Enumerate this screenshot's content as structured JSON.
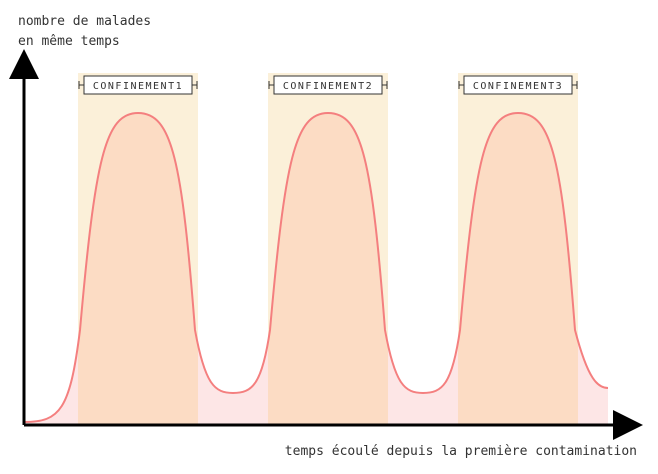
{
  "y_axis_label": {
    "lines": [
      "nombre de malades",
      "en même temps"
    ]
  },
  "x_axis_label": "temps écoulé depuis la première contamination",
  "periods": [
    {
      "label": "CONFINEMENT1"
    },
    {
      "label": "CONFINEMENT2"
    },
    {
      "label": "CONFINEMENT3"
    }
  ]
}
